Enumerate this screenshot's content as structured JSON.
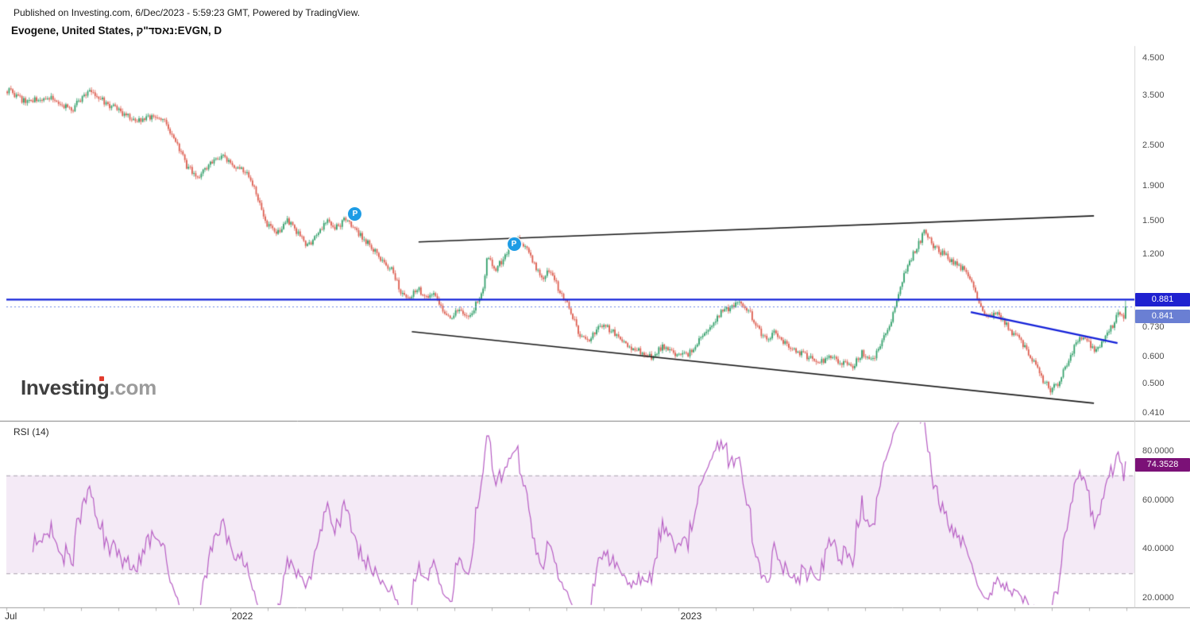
{
  "header": {
    "published": "Published on Investing.com, 6/Dec/2023 - 5:59:23 GMT, Powered by TradingView.",
    "title": "Evogene, United States, נאסד\"ק:EVGN, D"
  },
  "watermark": {
    "name": "Investing",
    "tld": ".com"
  },
  "price_axis": {
    "line_label": "0.881",
    "last_label": "0.841"
  },
  "rsi_panel": {
    "label": "RSI (14)",
    "value_label": "74.3528"
  },
  "colors": {
    "up": "#2f9e68",
    "down": "#dc5a4c",
    "blue_line": "#1320d8",
    "dotted_line": "#6b87e8",
    "line_badge": "#1f21d0",
    "last_badge": "#6a7fd3",
    "rsi_line": "#b65cc3",
    "rsi_badge": "#7b1177",
    "band_fill": "rgba(205,160,215,0.22)",
    "band_border": "#a9a2ad",
    "trendline": "#1a1a1a",
    "axis_text": "#4f4f4f"
  },
  "chart_data": {
    "type": "candlestick",
    "title": "Evogene (EVGN) Daily with RSI(14)",
    "timeframe": "D",
    "x_axis": {
      "labels": [
        {
          "text": "Jul",
          "t": 0.004
        },
        {
          "text": "2022",
          "t": 0.2106
        },
        {
          "text": "2023",
          "t": 0.6113
        }
      ],
      "months_span": 30
    },
    "price_pane": {
      "scale": "log",
      "ylim": [
        0.393,
        4.87
      ],
      "ticks": [
        {
          "label": "4.500",
          "value": 4.5
        },
        {
          "label": "3.500",
          "value": 3.5
        },
        {
          "label": "2.500",
          "value": 2.5
        },
        {
          "label": "1.900",
          "value": 1.9
        },
        {
          "label": "1.500",
          "value": 1.5
        },
        {
          "label": "1.200",
          "value": 1.2
        },
        {
          "label": "0.730",
          "value": 0.73
        },
        {
          "label": "0.600",
          "value": 0.6
        },
        {
          "label": "0.500",
          "value": 0.5
        },
        {
          "label": "0.410",
          "value": 0.41
        }
      ],
      "levels": {
        "horizontal_line": 0.881,
        "last_price": 0.841
      },
      "trendlines": [
        {
          "name": "upper-black-trendline",
          "color": "black",
          "width": 1.6,
          "from": {
            "t": 0.368,
            "price": 1.3
          },
          "to": {
            "t": 0.971,
            "price": 1.55
          }
        },
        {
          "name": "lower-black-trendline",
          "color": "black",
          "width": 1.6,
          "from": {
            "t": 0.362,
            "price": 0.71
          },
          "to": {
            "t": 0.971,
            "price": 0.438
          }
        },
        {
          "name": "blue-descending-trendline",
          "color": "blue",
          "width": 2.4,
          "from": {
            "t": 0.861,
            "price": 0.81
          },
          "to": {
            "t": 0.992,
            "price": 0.657
          }
        }
      ],
      "p_markers": [
        {
          "label": "P",
          "t": 0.3113,
          "price": 1.57
        },
        {
          "label": "P",
          "t": 0.4532,
          "price": 1.28
        }
      ],
      "sampling": "close-price keyframes read from chart; t = fraction of x-axis (Jul 2021 .. Dec 2023)",
      "keyframes": [
        [
          0.0,
          3.62
        ],
        [
          0.0156,
          3.35
        ],
        [
          0.0369,
          3.45
        ],
        [
          0.0582,
          3.18
        ],
        [
          0.0723,
          3.62
        ],
        [
          0.083,
          3.42
        ],
        [
          0.1007,
          3.12
        ],
        [
          0.1149,
          2.95
        ],
        [
          0.1255,
          3.02
        ],
        [
          0.1362,
          3.05
        ],
        [
          0.1468,
          2.7
        ],
        [
          0.161,
          2.15
        ],
        [
          0.1716,
          2.02
        ],
        [
          0.1823,
          2.25
        ],
        [
          0.1929,
          2.3
        ],
        [
          0.2035,
          2.18
        ],
        [
          0.2156,
          2.05
        ],
        [
          0.2319,
          1.46
        ],
        [
          0.2411,
          1.38
        ],
        [
          0.2511,
          1.5
        ],
        [
          0.261,
          1.36
        ],
        [
          0.2681,
          1.27
        ],
        [
          0.278,
          1.37
        ],
        [
          0.2865,
          1.5
        ],
        [
          0.2943,
          1.43
        ],
        [
          0.3035,
          1.53
        ],
        [
          0.3135,
          1.38
        ],
        [
          0.3241,
          1.27
        ],
        [
          0.3348,
          1.16
        ],
        [
          0.3454,
          1.06
        ],
        [
          0.3525,
          0.92
        ],
        [
          0.3596,
          0.89
        ],
        [
          0.3667,
          0.95
        ],
        [
          0.3738,
          0.89
        ],
        [
          0.3809,
          0.93
        ],
        [
          0.3879,
          0.83
        ],
        [
          0.3957,
          0.79
        ],
        [
          0.4043,
          0.81
        ],
        [
          0.4128,
          0.79
        ],
        [
          0.4199,
          0.86
        ],
        [
          0.4255,
          0.96
        ],
        [
          0.4298,
          1.2
        ],
        [
          0.4355,
          1.06
        ],
        [
          0.4426,
          1.15
        ],
        [
          0.4496,
          1.27
        ],
        [
          0.4567,
          1.32
        ],
        [
          0.4624,
          1.26
        ],
        [
          0.4681,
          1.18
        ],
        [
          0.4738,
          1.06
        ],
        [
          0.4794,
          1.03
        ],
        [
          0.4851,
          1.09
        ],
        [
          0.4922,
          0.96
        ],
        [
          0.4993,
          0.88
        ],
        [
          0.505,
          0.8
        ],
        [
          0.5106,
          0.7
        ],
        [
          0.5177,
          0.66
        ],
        [
          0.5248,
          0.7
        ],
        [
          0.5319,
          0.745
        ],
        [
          0.539,
          0.72
        ],
        [
          0.5461,
          0.68
        ],
        [
          0.5546,
          0.645
        ],
        [
          0.5652,
          0.625
        ],
        [
          0.5759,
          0.6
        ],
        [
          0.5865,
          0.64
        ],
        [
          0.5972,
          0.615
        ],
        [
          0.6078,
          0.6
        ],
        [
          0.617,
          0.66
        ],
        [
          0.627,
          0.73
        ],
        [
          0.6369,
          0.8
        ],
        [
          0.6468,
          0.84
        ],
        [
          0.656,
          0.87
        ],
        [
          0.6645,
          0.8
        ],
        [
          0.6716,
          0.72
        ],
        [
          0.6787,
          0.67
        ],
        [
          0.6858,
          0.7
        ],
        [
          0.6929,
          0.66
        ],
        [
          0.7035,
          0.63
        ],
        [
          0.7142,
          0.6
        ],
        [
          0.7248,
          0.575
        ],
        [
          0.7355,
          0.6
        ],
        [
          0.7461,
          0.575
        ],
        [
          0.7567,
          0.56
        ],
        [
          0.7638,
          0.615
        ],
        [
          0.773,
          0.585
        ],
        [
          0.7801,
          0.63
        ],
        [
          0.7872,
          0.72
        ],
        [
          0.7943,
          0.83
        ],
        [
          0.8014,
          1.02
        ],
        [
          0.8085,
          1.17
        ],
        [
          0.8156,
          1.3
        ],
        [
          0.8213,
          1.41
        ],
        [
          0.827,
          1.28
        ],
        [
          0.834,
          1.22
        ],
        [
          0.8411,
          1.17
        ],
        [
          0.8482,
          1.12
        ],
        [
          0.8553,
          1.08
        ],
        [
          0.8624,
          1.0
        ],
        [
          0.8695,
          0.84
        ],
        [
          0.8766,
          0.77
        ],
        [
          0.8837,
          0.81
        ],
        [
          0.8908,
          0.77
        ],
        [
          0.8979,
          0.71
        ],
        [
          0.905,
          0.67
        ],
        [
          0.9121,
          0.62
        ],
        [
          0.9191,
          0.565
        ],
        [
          0.9262,
          0.51
        ],
        [
          0.9333,
          0.48
        ],
        [
          0.9404,
          0.5
        ],
        [
          0.9475,
          0.575
        ],
        [
          0.9546,
          0.645
        ],
        [
          0.9617,
          0.695
        ],
        [
          0.9674,
          0.655
        ],
        [
          0.973,
          0.615
        ],
        [
          0.9787,
          0.66
        ],
        [
          0.9837,
          0.7
        ],
        [
          0.9887,
          0.745
        ],
        [
          0.9929,
          0.8
        ],
        [
          0.9972,
          0.78
        ],
        [
          1.0,
          0.841
        ]
      ]
    },
    "rsi_pane": {
      "period": 14,
      "ylim": [
        17,
        92
      ],
      "ticks": [
        {
          "label": "80.0000",
          "value": 80
        },
        {
          "label": "60.0000",
          "value": 60
        },
        {
          "label": "40.0000",
          "value": 40
        },
        {
          "label": "20.0000",
          "value": 20
        }
      ],
      "band": [
        30,
        70
      ],
      "last_value": 74.3528
    }
  }
}
